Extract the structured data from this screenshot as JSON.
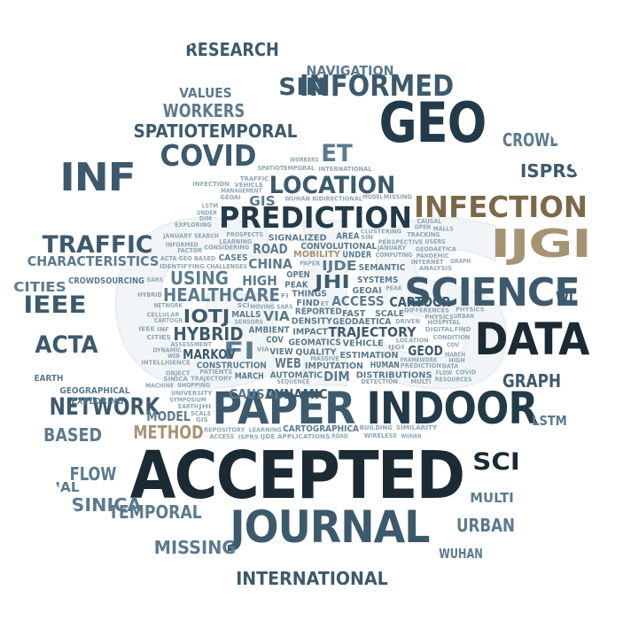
{
  "image": {
    "kind": "word-cloud",
    "shape": "circle",
    "background_letters": "GIS",
    "colors": {
      "darkest": "#1b2a33",
      "dark": "#233a48",
      "mid": "#3d5a6c",
      "steel": "#5c7a8e",
      "light": "#8fa6b4",
      "pale": "#b9c9d3",
      "khaki": "#a59474",
      "tan": "#7b6a4a",
      "bg_glyph": "#f2f5f7"
    }
  },
  "words": [
    {
      "text": "ACCEPTED",
      "weight": 10,
      "color": "darkest"
    },
    {
      "text": "GEO",
      "weight": 9,
      "color": "dark"
    },
    {
      "text": "PAPER",
      "weight": 8,
      "color": "mid"
    },
    {
      "text": "INDOOR",
      "weight": 8,
      "color": "dark"
    },
    {
      "text": "DATA",
      "weight": 8,
      "color": "darkest"
    },
    {
      "text": "JOURNAL",
      "weight": 8,
      "color": "mid"
    },
    {
      "text": "IJGI",
      "weight": 7,
      "color": "khaki"
    },
    {
      "text": "INF",
      "weight": 7,
      "color": "mid"
    },
    {
      "text": "SCIENCE",
      "weight": 7,
      "color": "mid"
    },
    {
      "text": "INFECTION",
      "weight": 6,
      "color": "tan"
    },
    {
      "text": "COVID",
      "weight": 6,
      "color": "mid"
    },
    {
      "text": "PREDICTION",
      "weight": 6,
      "color": "dark"
    },
    {
      "text": "INFORMED",
      "weight": 6,
      "color": "mid"
    },
    {
      "text": "NETWORK",
      "weight": 5,
      "color": "mid"
    },
    {
      "text": "TRAFFIC",
      "weight": 5,
      "color": "mid"
    },
    {
      "text": "LOCATION",
      "weight": 5,
      "color": "mid"
    },
    {
      "text": "IEEE",
      "weight": 5,
      "color": "mid"
    },
    {
      "text": "ACTA",
      "weight": 5,
      "color": "mid"
    },
    {
      "text": "SCI",
      "weight": 5,
      "color": "darkest"
    },
    {
      "text": "FI",
      "weight": 5,
      "color": "steel"
    },
    {
      "text": "ET",
      "weight": 5,
      "color": "steel"
    },
    {
      "text": "SIN",
      "weight": 5,
      "color": "mid"
    },
    {
      "text": "GRAPH",
      "weight": 4,
      "color": "mid"
    },
    {
      "text": "FLOW",
      "weight": 4,
      "color": "steel"
    },
    {
      "text": "INTERNATIONAL",
      "weight": 4,
      "color": "mid"
    },
    {
      "text": "TEMPORAL",
      "weight": 4,
      "color": "steel"
    },
    {
      "text": "SPATIOTEMPORAL",
      "weight": 4,
      "color": "mid"
    },
    {
      "text": "WORKERS",
      "weight": 4,
      "color": "steel"
    },
    {
      "text": "RESEARCH",
      "weight": 4,
      "color": "mid"
    },
    {
      "text": "ISPRS",
      "weight": 4,
      "color": "mid"
    },
    {
      "text": "CROWD",
      "weight": 4,
      "color": "steel"
    },
    {
      "text": "METHOD",
      "weight": 4,
      "color": "khaki"
    },
    {
      "text": "IOTJ",
      "weight": 4,
      "color": "mid"
    },
    {
      "text": "HYBRID",
      "weight": 4,
      "color": "mid"
    },
    {
      "text": "JHI",
      "weight": 4,
      "color": "mid"
    },
    {
      "text": "MISSING",
      "weight": 4,
      "color": "steel"
    },
    {
      "text": "HEALTHCARE",
      "weight": 4,
      "color": "steel"
    },
    {
      "text": "USING",
      "weight": 4,
      "color": "steel"
    },
    {
      "text": "SINICA",
      "weight": 4,
      "color": "steel"
    },
    {
      "text": "BASED",
      "weight": 4,
      "color": "steel"
    },
    {
      "text": "URBAN",
      "weight": 4,
      "color": "steel"
    },
    {
      "text": "WUHAN",
      "weight": 3,
      "color": "steel"
    },
    {
      "text": "MULTI",
      "weight": 3,
      "color": "steel"
    },
    {
      "text": "TRAJECTORY",
      "weight": 3,
      "color": "mid"
    },
    {
      "text": "GEOD",
      "weight": 3,
      "color": "mid"
    },
    {
      "text": "CAUSAL",
      "weight": 3,
      "color": "steel"
    },
    {
      "text": "MARKOV",
      "weight": 3,
      "color": "mid"
    },
    {
      "text": "MODEL",
      "weight": 3,
      "color": "steel"
    },
    {
      "text": "DYNAMIC",
      "weight": 3,
      "color": "mid"
    },
    {
      "text": "WEB",
      "weight": 3,
      "color": "steel"
    },
    {
      "text": "DIM",
      "weight": 3,
      "color": "steel"
    },
    {
      "text": "CARTOGR",
      "weight": 3,
      "color": "mid"
    },
    {
      "text": "ACCESS",
      "weight": 3,
      "color": "steel"
    },
    {
      "text": "LSTM",
      "weight": 3,
      "color": "steel"
    },
    {
      "text": "VALUES",
      "weight": 3,
      "color": "steel"
    },
    {
      "text": "NAVIGATION",
      "weight": 3,
      "color": "steel"
    },
    {
      "text": "CHINA",
      "weight": 3,
      "color": "steel"
    },
    {
      "text": "ROAD",
      "weight": 3,
      "color": "steel"
    },
    {
      "text": "HIGH",
      "weight": 3,
      "color": "steel"
    },
    {
      "text": "IJDE",
      "weight": 3,
      "color": "steel"
    },
    {
      "text": "SPATIAL",
      "weight": 3,
      "color": "steel"
    },
    {
      "text": "GIS",
      "weight": 3,
      "color": "steel"
    },
    {
      "text": "CHARACTERISTICS",
      "weight": 3,
      "color": "steel"
    },
    {
      "text": "CITIES",
      "weight": 3,
      "color": "steel"
    },
    {
      "text": "CROWDSOURCING",
      "weight": 2,
      "color": "steel"
    },
    {
      "text": "GEOGRAPHICAL",
      "weight": 2,
      "color": "steel"
    },
    {
      "text": "EXPLORING",
      "weight": 2,
      "color": "steel"
    },
    {
      "text": "EARTH",
      "weight": 2,
      "color": "steel"
    },
    {
      "text": "WI",
      "weight": 3,
      "color": "mid"
    },
    {
      "text": "VIA",
      "weight": 3,
      "color": "steel"
    },
    {
      "text": "DENSITY",
      "weight": 2,
      "color": "steel"
    },
    {
      "text": "IMPACT",
      "weight": 2,
      "color": "steel"
    },
    {
      "text": "REPORTED",
      "weight": 2,
      "color": "steel"
    },
    {
      "text": "GEOMATICS",
      "weight": 2,
      "color": "steel"
    },
    {
      "text": "FIND",
      "weight": 2,
      "color": "steel"
    },
    {
      "text": "THINGS",
      "weight": 2,
      "color": "steel"
    },
    {
      "text": "QUALITY",
      "weight": 2,
      "color": "steel"
    },
    {
      "text": "IMPUTATION",
      "weight": 2,
      "color": "steel"
    },
    {
      "text": "GEODAETICA",
      "weight": 2,
      "color": "steel"
    },
    {
      "text": "AMBIENT",
      "weight": 2,
      "color": "steel"
    },
    {
      "text": "VIEW",
      "weight": 2,
      "color": "steel"
    },
    {
      "text": "COV",
      "weight": 2,
      "color": "steel"
    },
    {
      "text": "VEHICLE",
      "weight": 2,
      "color": "steel"
    },
    {
      "text": "AUTOMATIC",
      "weight": 2,
      "color": "steel"
    },
    {
      "text": "PEAK",
      "weight": 2,
      "color": "steel"
    },
    {
      "text": "OPEN",
      "weight": 2,
      "color": "steel"
    },
    {
      "text": "FAST",
      "weight": 2,
      "color": "steel"
    },
    {
      "text": "ESTIMATION",
      "weight": 2,
      "color": "steel"
    },
    {
      "text": "GEOAI",
      "weight": 2,
      "color": "steel"
    },
    {
      "text": "MOBILITY",
      "weight": 2,
      "color": "khaki"
    },
    {
      "text": "CONVOLUTIONAL",
      "weight": 2,
      "color": "steel"
    },
    {
      "text": "SIGNALIZED",
      "weight": 2,
      "color": "steel"
    },
    {
      "text": "CONSTRUCTION",
      "weight": 2,
      "color": "steel"
    },
    {
      "text": "MALLS",
      "weight": 2,
      "color": "steel"
    },
    {
      "text": "DISTRIBUTIONS",
      "weight": 2,
      "color": "steel"
    },
    {
      "text": "SYSTEMS",
      "weight": 2,
      "color": "steel"
    },
    {
      "text": "MARCH",
      "weight": 2,
      "color": "steel"
    },
    {
      "text": "SEMANTIC",
      "weight": 2,
      "color": "steel"
    },
    {
      "text": "SCALE",
      "weight": 2,
      "color": "steel"
    },
    {
      "text": "HUMAN",
      "weight": 2,
      "color": "steel"
    },
    {
      "text": "UNDER",
      "weight": 2,
      "color": "steel"
    },
    {
      "text": "AREA",
      "weight": 2,
      "color": "steel"
    },
    {
      "text": "CASES",
      "weight": 2,
      "color": "steel"
    },
    {
      "text": "CARTOGRAPHICA",
      "weight": 2,
      "color": "steel"
    },
    {
      "text": "MOVING",
      "weight": 1,
      "color": "light"
    },
    {
      "text": "COMPUTING",
      "weight": 1,
      "color": "light"
    },
    {
      "text": "LOCATION",
      "weight": 1,
      "color": "light"
    },
    {
      "text": "PAPER",
      "weight": 1,
      "color": "light"
    },
    {
      "text": "DRIVEN",
      "weight": 1,
      "color": "light"
    },
    {
      "text": "CONSIDERING",
      "weight": 1,
      "color": "light"
    },
    {
      "text": "CHALLENGES",
      "weight": 1,
      "color": "light"
    },
    {
      "text": "MASSIVE",
      "weight": 1,
      "color": "light"
    },
    {
      "text": "IJDE APPLICATIONS",
      "weight": 1,
      "color": "light"
    },
    {
      "text": "DETECTION",
      "weight": 1,
      "color": "light"
    },
    {
      "text": "PROSPECTS",
      "weight": 1,
      "color": "light"
    },
    {
      "text": "TRAJECTORY",
      "weight": 1,
      "color": "light"
    },
    {
      "text": "LEARNING",
      "weight": 1,
      "color": "light"
    },
    {
      "text": "CLUSTERING",
      "weight": 1,
      "color": "light"
    },
    {
      "text": "PERSPECTIVE",
      "weight": 1,
      "color": "light"
    },
    {
      "text": "DIFFERENCES",
      "weight": 1,
      "color": "light"
    },
    {
      "text": "SARS",
      "weight": 1,
      "color": "light"
    },
    {
      "text": "JANUARY",
      "weight": 1,
      "color": "light"
    },
    {
      "text": "WUHAN BIDIRECTIONAL",
      "weight": 1,
      "color": "light"
    },
    {
      "text": "PREDICTION",
      "weight": 1,
      "color": "light"
    },
    {
      "text": "BUILDING",
      "weight": 1,
      "color": "light"
    },
    {
      "text": "ASSESSMENT",
      "weight": 1,
      "color": "light"
    },
    {
      "text": "PATIENTS",
      "weight": 1,
      "color": "light"
    },
    {
      "text": "SEQUENCE",
      "weight": 1,
      "color": "light"
    },
    {
      "text": "DIGITAL",
      "weight": 1,
      "color": "light"
    },
    {
      "text": "LEARNING",
      "weight": 1,
      "color": "light"
    },
    {
      "text": "WIRELESS",
      "weight": 1,
      "color": "light"
    },
    {
      "text": "INTERNET",
      "weight": 1,
      "color": "light"
    },
    {
      "text": "SENSORS",
      "weight": 1,
      "color": "light"
    },
    {
      "text": "PANDEMIC",
      "weight": 1,
      "color": "light"
    },
    {
      "text": "FRAMEWORK",
      "weight": 1,
      "color": "light"
    },
    {
      "text": "HOSPITAL",
      "weight": 1,
      "color": "light"
    },
    {
      "text": "REPOSITORY",
      "weight": 1,
      "color": "light"
    },
    {
      "text": "GEO BASED",
      "weight": 1,
      "color": "light"
    },
    {
      "text": "UNIVERSITY",
      "weight": 1,
      "color": "light"
    },
    {
      "text": "CONDITION",
      "weight": 1,
      "color": "light"
    },
    {
      "text": "SHOPPING",
      "weight": 1,
      "color": "light"
    },
    {
      "text": "SEARCH",
      "weight": 1,
      "color": "light"
    },
    {
      "text": "INTELLIGENCE",
      "weight": 1,
      "color": "light"
    },
    {
      "text": "ANALYSIS",
      "weight": 1,
      "color": "light"
    },
    {
      "text": "GEODAETICA",
      "weight": 1,
      "color": "light"
    },
    {
      "text": "IDENTIFYING",
      "weight": 1,
      "color": "light"
    },
    {
      "text": "SYMPOSIUM",
      "weight": 1,
      "color": "light"
    },
    {
      "text": "MANAGEMENT",
      "weight": 1,
      "color": "light"
    },
    {
      "text": "TRACKING",
      "weight": 1,
      "color": "light"
    },
    {
      "text": "PHYSICS",
      "weight": 1,
      "color": "light"
    },
    {
      "text": "FACTOR",
      "weight": 1,
      "color": "light"
    },
    {
      "text": "OBJECT",
      "weight": 1,
      "color": "light"
    },
    {
      "text": "CELLULAR",
      "weight": 1,
      "color": "light"
    },
    {
      "text": "INFORMED",
      "weight": 1,
      "color": "light"
    },
    {
      "text": "SIMILARITY",
      "weight": 1,
      "color": "light"
    },
    {
      "text": "PEAK",
      "weight": 1,
      "color": "light"
    },
    {
      "text": "RESOURCES",
      "weight": 1,
      "color": "light"
    },
    {
      "text": "ACCESS",
      "weight": 1,
      "color": "light"
    },
    {
      "text": "NETWORK",
      "weight": 1,
      "color": "light"
    },
    {
      "text": "EXPLORING",
      "weight": 1,
      "color": "light"
    },
    {
      "text": "SPATIOTEMPORAL",
      "weight": 1,
      "color": "light"
    },
    {
      "text": "DYNAMIC",
      "weight": 1,
      "color": "light"
    },
    {
      "text": "FLOW",
      "weight": 1,
      "color": "light"
    },
    {
      "text": "SCI",
      "weight": 1,
      "color": "light"
    },
    {
      "text": "IJGI",
      "weight": 1,
      "color": "light"
    },
    {
      "text": "MULTI",
      "weight": 1,
      "color": "light"
    },
    {
      "text": "COV",
      "weight": 1,
      "color": "light"
    },
    {
      "text": "JHI",
      "weight": 1,
      "color": "light"
    },
    {
      "text": "ROAD",
      "weight": 1,
      "color": "light"
    },
    {
      "text": "SCALE",
      "weight": 1,
      "color": "light"
    },
    {
      "text": "USERS",
      "weight": 1,
      "color": "light"
    },
    {
      "text": "OPEN",
      "weight": 1,
      "color": "light"
    },
    {
      "text": "ET",
      "weight": 1,
      "color": "light"
    },
    {
      "text": "INF",
      "weight": 1,
      "color": "light"
    },
    {
      "text": "VIA",
      "weight": 1,
      "color": "light"
    },
    {
      "text": "DATA",
      "weight": 1,
      "color": "light"
    },
    {
      "text": "ISPRS",
      "weight": 1,
      "color": "light"
    },
    {
      "text": "CITIES",
      "weight": 1,
      "color": "light"
    },
    {
      "text": "WEB",
      "weight": 1,
      "color": "light"
    },
    {
      "text": "HIGH",
      "weight": 1,
      "color": "light"
    },
    {
      "text": "CAUSAL",
      "weight": 1,
      "color": "light"
    },
    {
      "text": "GEOAI",
      "weight": 1,
      "color": "light"
    },
    {
      "text": "MISSING",
      "weight": 1,
      "color": "light"
    },
    {
      "text": "FI",
      "weight": 1,
      "color": "light"
    },
    {
      "text": "MARCH",
      "weight": 1,
      "color": "light"
    },
    {
      "text": "CARTOGR",
      "weight": 1,
      "color": "light"
    },
    {
      "text": "FIND",
      "weight": 1,
      "color": "light"
    },
    {
      "text": "SINICA",
      "weight": 1,
      "color": "light"
    },
    {
      "text": "EARTH",
      "weight": 1,
      "color": "light"
    },
    {
      "text": "MODEL",
      "weight": 1,
      "color": "light"
    },
    {
      "text": "VEHICLE",
      "weight": 1,
      "color": "light"
    },
    {
      "text": "INTERNATIONAL",
      "weight": 1,
      "color": "light"
    },
    {
      "text": "UNDER",
      "weight": 1,
      "color": "light"
    },
    {
      "text": "PHYSICS",
      "weight": 1,
      "color": "light"
    },
    {
      "text": "WUHAN",
      "weight": 1,
      "color": "light"
    },
    {
      "text": "TRAFFIC",
      "weight": 1,
      "color": "light"
    },
    {
      "text": "MALLS",
      "weight": 1,
      "color": "light"
    },
    {
      "text": "DIM",
      "weight": 1,
      "color": "light"
    },
    {
      "text": "URBAN",
      "weight": 1,
      "color": "light"
    },
    {
      "text": "GRAPH",
      "weight": 1,
      "color": "light"
    },
    {
      "text": "LSTM",
      "weight": 1,
      "color": "light"
    },
    {
      "text": "ACTA",
      "weight": 1,
      "color": "light"
    },
    {
      "text": "WORKERS",
      "weight": 1,
      "color": "light"
    },
    {
      "text": "HYBRID",
      "weight": 1,
      "color": "light"
    },
    {
      "text": "JANUARY",
      "weight": 1,
      "color": "light"
    },
    {
      "text": "MACHINE",
      "weight": 1,
      "color": "light"
    },
    {
      "text": "INFECTION",
      "weight": 1,
      "color": "light"
    },
    {
      "text": "SARS",
      "weight": 1,
      "color": "light"
    },
    {
      "text": "SIN",
      "weight": 1,
      "color": "light"
    },
    {
      "text": "COVID",
      "weight": 1,
      "color": "light"
    },
    {
      "text": "IEEE",
      "weight": 1,
      "color": "light"
    },
    {
      "text": "GIS",
      "weight": 1,
      "color": "light"
    }
  ]
}
